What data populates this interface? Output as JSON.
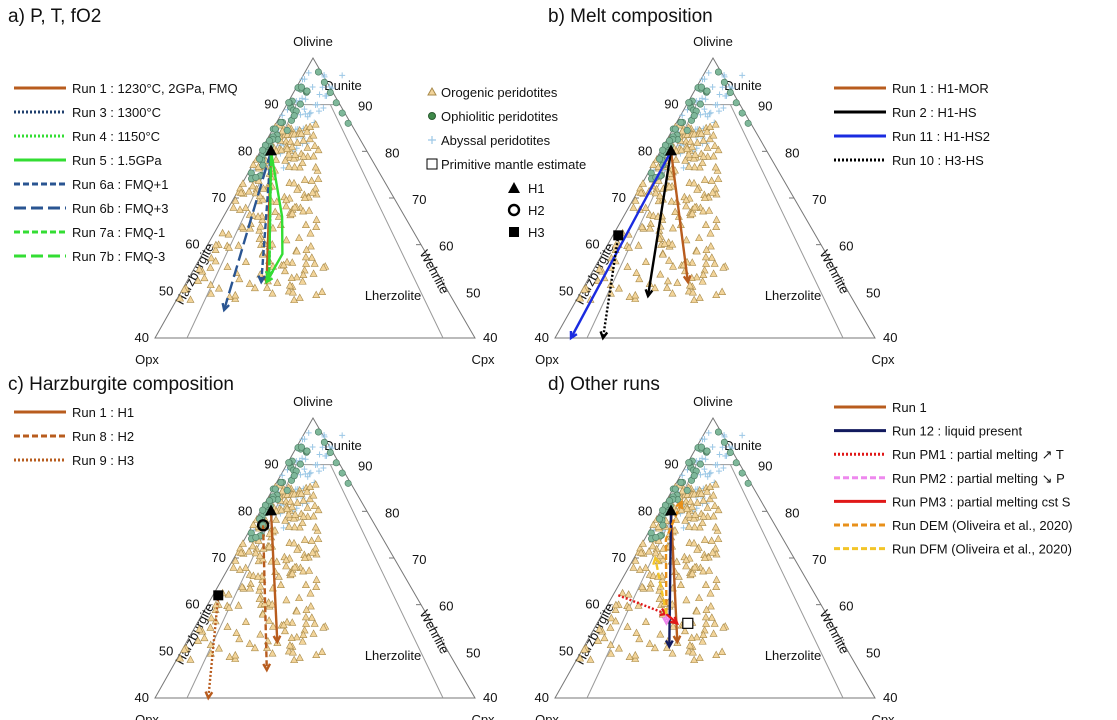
{
  "figure": {
    "panels": [
      {
        "id": "a",
        "title": "a) P, T, fO2",
        "legend_runs": [
          {
            "label": "Run 1 : 1230°C, 2GPa, FMQ",
            "color": "#b85c1e",
            "style": "solid"
          },
          {
            "label": "Run 3 : 1300°C",
            "color": "#1f3f6e",
            "style": "dotted"
          },
          {
            "label": "Run 4 : 1150°C",
            "color": "#33dd33",
            "style": "dotted"
          },
          {
            "label": "Run 5 : 1.5GPa",
            "color": "#33dd33",
            "style": "solid"
          },
          {
            "label": "Run 6a : FMQ+1",
            "color": "#2a5592",
            "style": "dashed"
          },
          {
            "label": "Run 6b : FMQ+3",
            "color": "#2a5592",
            "style": "longdash"
          },
          {
            "label": "Run 7a : FMQ-1",
            "color": "#33dd33",
            "style": "dashed"
          },
          {
            "label": "Run 7b : FMQ-3",
            "color": "#33dd33",
            "style": "longdash"
          }
        ],
        "legend_samples": [
          {
            "label": "Orogenic peridotites",
            "marker": "triangle"
          },
          {
            "label": "Ophiolitic peridotites",
            "marker": "circle"
          },
          {
            "label": "Abyssal peridotites",
            "marker": "plus"
          },
          {
            "label": "Primitive mantle estimate",
            "marker": "square-open"
          }
        ],
        "legend_starts": [
          {
            "label": "H1",
            "marker": "triangle-filled"
          },
          {
            "label": "H2",
            "marker": "circle-open"
          },
          {
            "label": "H3",
            "marker": "square-filled"
          }
        ]
      },
      {
        "id": "b",
        "title": "b) Melt composition",
        "legend_runs": [
          {
            "label": "Run 1 : H1-MOR",
            "color": "#b85c1e",
            "style": "solid"
          },
          {
            "label": "Run 2 : H1-HS",
            "color": "#000000",
            "style": "solid"
          },
          {
            "label": "Run 11 : H1-HS2",
            "color": "#1a2be0",
            "style": "solid"
          },
          {
            "label": "Run 10 : H3-HS",
            "color": "#000000",
            "style": "dotted"
          }
        ]
      },
      {
        "id": "c",
        "title": "c) Harzburgite composition",
        "legend_runs": [
          {
            "label": "Run 1 : H1",
            "color": "#b85c1e",
            "style": "solid"
          },
          {
            "label": "Run 8 : H2",
            "color": "#b85c1e",
            "style": "dashed"
          },
          {
            "label": "Run 9 : H3",
            "color": "#b85c1e",
            "style": "dotted"
          }
        ]
      },
      {
        "id": "d",
        "title": "d) Other runs",
        "legend_runs": [
          {
            "label": "Run 1",
            "color": "#b85c1e",
            "style": "solid"
          },
          {
            "label": "Run 12 : liquid present",
            "color": "#121a5e",
            "style": "solid"
          },
          {
            "label": "Run PM1 : partial melting ↗ T",
            "color": "#e01818",
            "style": "dotted"
          },
          {
            "label": "Run PM2 : partial melting ↘ P",
            "color": "#ee88ee",
            "style": "dashed"
          },
          {
            "label": "Run PM3 : partial melting cst S",
            "color": "#e01818",
            "style": "solid"
          },
          {
            "label": "Run DEM (Oliveira et al., 2020)",
            "color": "#e8901a",
            "style": "dashed"
          },
          {
            "label": "Run DFM (Oliveira et al., 2020)",
            "color": "#f3c528",
            "style": "dashed"
          }
        ]
      }
    ],
    "ternary": {
      "vertex_labels": {
        "top": "Olivine",
        "left": "Opx",
        "right": "Cpx"
      },
      "field_labels": [
        "Dunite",
        "Harzburgite",
        "Lherzolite",
        "Wehrlite"
      ],
      "olivine_ticks": [
        40,
        50,
        60,
        70,
        80,
        90
      ]
    }
  },
  "chart_data": {
    "type": "ternary",
    "components": [
      "Olivine",
      "Opx",
      "Cpx"
    ],
    "olivine_range": [
      40,
      100
    ],
    "start_compositions": {
      "H1": {
        "Olivine": 80,
        "Opx": 18,
        "Cpx": 2
      },
      "H2": {
        "Olivine": 77,
        "Opx": 21,
        "Cpx": 2
      },
      "H3": {
        "Olivine": 62,
        "Opx": 37,
        "Cpx": 1
      }
    },
    "runs": {
      "a": [
        {
          "name": "Run 1",
          "points": [
            [
              80,
              18,
              2
            ],
            [
              52,
              33,
              15
            ]
          ]
        },
        {
          "name": "Run 3",
          "points": [
            [
              80,
              18,
              2
            ],
            [
              53,
              32,
              15
            ]
          ]
        },
        {
          "name": "Run 4",
          "points": [
            [
              80,
              18,
              2
            ],
            [
              53,
              32,
              15
            ]
          ]
        },
        {
          "name": "Run 5",
          "points": [
            [
              80,
              18,
              2
            ],
            [
              66,
              23,
              11
            ],
            [
              58,
              27,
              15
            ],
            [
              52,
              33,
              15
            ]
          ]
        },
        {
          "name": "Run 6a",
          "points": [
            [
              80,
              18,
              2
            ],
            [
              52,
              34,
              14
            ]
          ]
        },
        {
          "name": "Run 6b",
          "points": [
            [
              80,
              18,
              2
            ],
            [
              46,
              44,
              10
            ]
          ]
        },
        {
          "name": "Run 7a",
          "points": [
            [
              80,
              18,
              2
            ],
            [
              53,
              32,
              15
            ]
          ]
        },
        {
          "name": "Run 7b",
          "points": [
            [
              80,
              18,
              2
            ],
            [
              53,
              32,
              15
            ]
          ]
        }
      ],
      "b": [
        {
          "name": "Run 1",
          "points": [
            [
              80,
              18,
              2
            ],
            [
              52,
              29,
              19
            ]
          ]
        },
        {
          "name": "Run 2",
          "points": [
            [
              80,
              18,
              2
            ],
            [
              49,
              38,
              13
            ]
          ]
        },
        {
          "name": "Run 11",
          "points": [
            [
              80,
              18,
              2
            ],
            [
              40,
              57,
              3
            ]
          ]
        },
        {
          "name": "Run 10",
          "points": [
            [
              62,
              37,
              1
            ],
            [
              40,
              51,
              9
            ]
          ]
        }
      ],
      "c": [
        {
          "name": "Run 1",
          "points": [
            [
              80,
              18,
              2
            ],
            [
              52,
              31,
              17
            ]
          ]
        },
        {
          "name": "Run 8",
          "points": [
            [
              77,
              21,
              2
            ],
            [
              46,
              36,
              18
            ]
          ]
        },
        {
          "name": "Run 9",
          "points": [
            [
              62,
              37,
              1
            ],
            [
              40,
              50,
              10
            ]
          ]
        }
      ],
      "d": [
        {
          "name": "Run 1",
          "points": [
            [
              80,
              18,
              2
            ],
            [
              52,
              31,
              17
            ]
          ]
        },
        {
          "name": "Run 12",
          "points": [
            [
              80,
              18,
              2
            ],
            [
              51,
              33,
              16
            ]
          ]
        },
        {
          "name": "Run PM1",
          "points": [
            [
              62,
              37,
              1
            ],
            [
              58,
              30,
              12
            ]
          ]
        },
        {
          "name": "Run PM2",
          "points": [
            [
              58,
              30,
              12
            ],
            [
              56,
              31,
              13
            ]
          ]
        },
        {
          "name": "Run PM3",
          "points": [
            [
              58,
              30,
              12
            ],
            [
              56,
              29,
              15
            ]
          ]
        },
        {
          "name": "Run DEM",
          "points": [
            [
              58,
              30,
              12
            ],
            [
              74,
              22,
              4
            ],
            [
              82,
              15,
              3
            ]
          ]
        },
        {
          "name": "Run DFM",
          "points": [
            [
              58,
              30,
              12
            ],
            [
              70,
              26,
              4
            ]
          ]
        }
      ]
    },
    "primitive_mantle": {
      "Olivine": 56,
      "Opx": 27,
      "Cpx": 17
    }
  }
}
